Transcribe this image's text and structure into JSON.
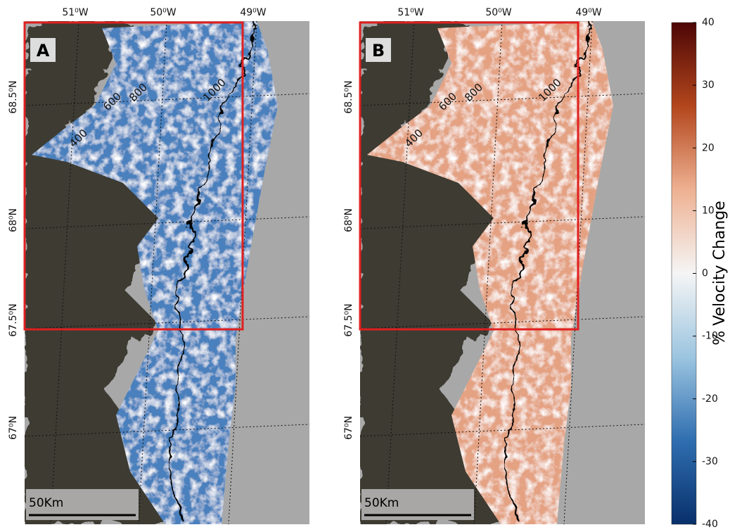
{
  "panels": [
    {
      "letter": "A",
      "scale_bar": "50Km",
      "contours": [
        "400",
        "600",
        "800",
        "1000"
      ],
      "fill": "#4a80bd"
    },
    {
      "letter": "B",
      "scale_bar": "50Km",
      "contours": [
        "400",
        "600",
        "800",
        "1000"
      ],
      "fill": "#e4a283"
    }
  ],
  "longitudes": [
    "51⁰W",
    "50⁰W",
    "49⁰W"
  ],
  "latitudes": [
    "68.5⁰N",
    "68⁰N",
    "67.5⁰N",
    "67⁰N"
  ],
  "colorbar": {
    "label": "% Velocity Change",
    "lim": [
      -40,
      40
    ],
    "ticks": [
      40,
      30,
      20,
      10,
      0,
      -10,
      -20,
      -30,
      -40
    ],
    "colors": [
      "#08306b",
      "#2f6eb0",
      "#9cc5e0",
      "#f5f5f5",
      "#eeb192",
      "#b3461c",
      "#4d0606"
    ]
  }
}
